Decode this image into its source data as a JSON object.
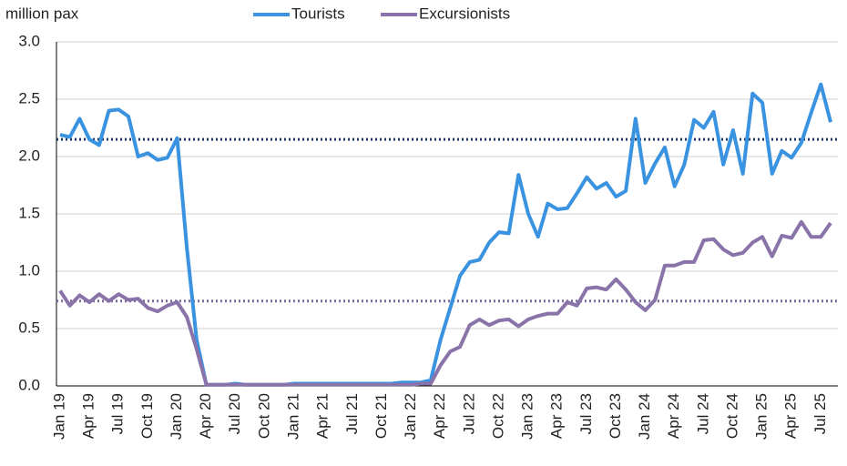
{
  "chart_data": {
    "type": "line",
    "ylabel": "million pax",
    "categories": [
      "Jan 19",
      null,
      null,
      "Apr 19",
      null,
      null,
      "Jul 19",
      null,
      null,
      "Oct 19",
      null,
      null,
      "Jan 20",
      null,
      null,
      "Apr 20",
      null,
      null,
      "Jul 20",
      null,
      null,
      "Oct 20",
      null,
      null,
      "Jan 21",
      null,
      null,
      "Apr 21",
      null,
      null,
      "Jul 21",
      null,
      null,
      "Oct 21",
      null,
      null,
      "Jan 22",
      null,
      null,
      "Apr 22",
      null,
      null,
      "Jul 22",
      null,
      null,
      "Oct 22",
      null,
      null,
      "Jan 23",
      null,
      null,
      "Apr 23",
      null,
      null,
      "Jul 23",
      null,
      null,
      "Oct 23",
      null,
      null,
      "Jan 24",
      null,
      null,
      "Apr 24",
      null,
      null,
      "Jul 24",
      null,
      null,
      "Oct 24",
      null,
      null,
      "Jan 25",
      null,
      null,
      "Apr 25",
      null,
      null,
      "Jul 25",
      null
    ],
    "series": [
      {
        "name": "Tourists",
        "color": "#3a93e0",
        "values": [
          2.19,
          2.17,
          2.33,
          2.15,
          2.1,
          2.4,
          2.41,
          2.35,
          2.0,
          2.03,
          1.97,
          1.99,
          2.16,
          1.2,
          0.4,
          0.01,
          0.01,
          0.01,
          0.02,
          0.01,
          0.01,
          0.01,
          0.01,
          0.01,
          0.02,
          0.02,
          0.02,
          0.02,
          0.02,
          0.02,
          0.02,
          0.02,
          0.02,
          0.02,
          0.02,
          0.03,
          0.03,
          0.03,
          0.05,
          0.4,
          0.68,
          0.96,
          1.08,
          1.1,
          1.25,
          1.34,
          1.33,
          1.84,
          1.5,
          1.3,
          1.59,
          1.54,
          1.55,
          1.68,
          1.82,
          1.72,
          1.77,
          1.65,
          1.7,
          2.33,
          1.77,
          1.94,
          2.08,
          1.74,
          1.93,
          2.32,
          2.25,
          2.39,
          1.93,
          2.23,
          1.85,
          2.55,
          2.47,
          1.85,
          2.05,
          1.99,
          2.12,
          2.38,
          2.63,
          2.3
        ]
      },
      {
        "name": "Excursionists",
        "color": "#8a73a8",
        "values": [
          0.83,
          0.7,
          0.79,
          0.73,
          0.8,
          0.74,
          0.8,
          0.75,
          0.76,
          0.68,
          0.65,
          0.7,
          0.73,
          0.6,
          0.32,
          0.01,
          0.01,
          0.01,
          0.01,
          0.01,
          0.01,
          0.01,
          0.01,
          0.01,
          0.01,
          0.01,
          0.01,
          0.01,
          0.01,
          0.01,
          0.01,
          0.01,
          0.01,
          0.01,
          0.01,
          0.01,
          0.01,
          0.02,
          0.02,
          0.18,
          0.3,
          0.34,
          0.53,
          0.58,
          0.53,
          0.57,
          0.58,
          0.52,
          0.58,
          0.61,
          0.63,
          0.63,
          0.73,
          0.7,
          0.85,
          0.86,
          0.84,
          0.93,
          0.84,
          0.73,
          0.66,
          0.75,
          1.05,
          1.05,
          1.08,
          1.08,
          1.27,
          1.28,
          1.19,
          1.14,
          1.16,
          1.25,
          1.3,
          1.13,
          1.31,
          1.29,
          1.43,
          1.3,
          1.3,
          1.42
        ]
      }
    ],
    "reference_lines": [
      {
        "value": 2.15,
        "color": "#1f3864"
      },
      {
        "value": 0.74,
        "color": "#7d6b9e"
      }
    ],
    "ylim": [
      0,
      3
    ],
    "yticks": [
      {
        "value": 0,
        "label": "0.0"
      },
      {
        "value": 0.5,
        "label": "0.5"
      },
      {
        "value": 1,
        "label": "1.0"
      },
      {
        "value": 1.5,
        "label": "1.5"
      },
      {
        "value": 2,
        "label": "2.0"
      },
      {
        "value": 2.5,
        "label": "2.5"
      },
      {
        "value": 3,
        "label": "3.0"
      }
    ],
    "grid": true,
    "legend": "top"
  }
}
